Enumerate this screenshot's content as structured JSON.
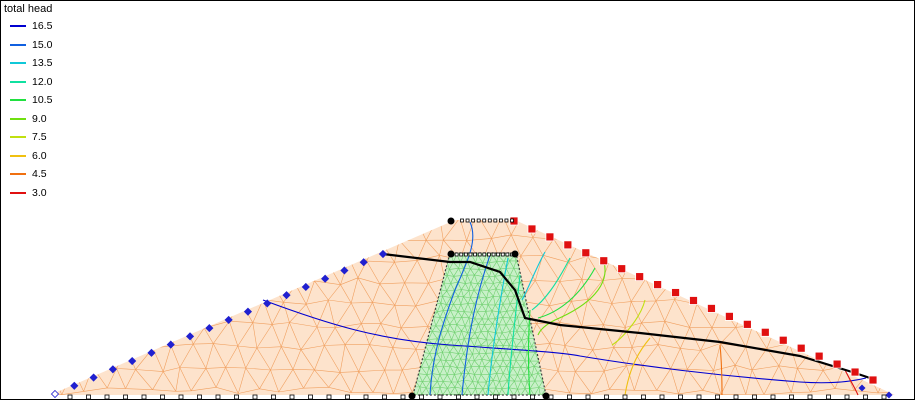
{
  "legend": {
    "title": "total head",
    "entries": [
      {
        "label": "16.5",
        "color": "#0000d0"
      },
      {
        "label": "15.0",
        "color": "#1060e0"
      },
      {
        "label": "13.5",
        "color": "#10c8d8"
      },
      {
        "label": "12.0",
        "color": "#10e0a0"
      },
      {
        "label": "10.5",
        "color": "#20e040"
      },
      {
        "label": "9.0",
        "color": "#70e010"
      },
      {
        "label": "7.5",
        "color": "#c0e010"
      },
      {
        "label": "6.0",
        "color": "#f0c010"
      },
      {
        "label": "4.5",
        "color": "#f07010"
      },
      {
        "label": "3.0",
        "color": "#e01010"
      }
    ]
  },
  "colors": {
    "shell_fill": "#fde3cc",
    "shell_mesh": "#f0a060",
    "core_fill": "#c8f0c8",
    "core_mesh": "#70d070",
    "phreatic_line": "#000000",
    "upstream_bc": "#2020d0",
    "downstream_bc": "#e01010"
  }
}
